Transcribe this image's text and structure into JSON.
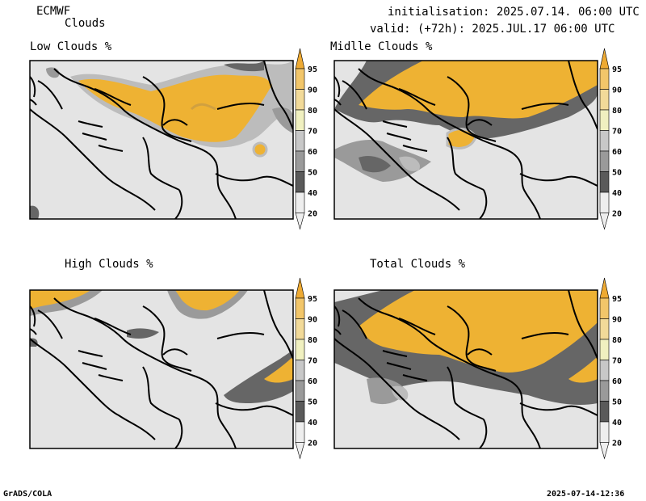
{
  "header": {
    "model": "ECMWF",
    "product": "Clouds",
    "init_line": "initialisation: 2025.07.14. 06:00 UTC",
    "valid_line": "valid: (+72h): 2025.JUL.17 06:00 UTC"
  },
  "panels": [
    {
      "title": "Low Clouds %"
    },
    {
      "title": "Midlle Clouds %"
    },
    {
      "title": "High Clouds %"
    },
    {
      "title": "Total Clouds %"
    }
  ],
  "colorbar": {
    "levels": [
      "95",
      "90",
      "80",
      "70",
      "60",
      "50",
      "40",
      "20"
    ],
    "colors": [
      "#eeaa33",
      "#f2c66a",
      "#f2da99",
      "#f0f0c0",
      "#c8c8c8",
      "#9a9a9a",
      "#5a5a5a",
      "#eeeeee"
    ]
  },
  "colors": {
    "background": "#e4e4e4",
    "cloud_high": "#eeb233",
    "cloud_mid": "#c6c6c6",
    "cloud_dark": "#666666"
  },
  "footer": {
    "left": "GrADS/COLA",
    "right": "2025-07-14-12:36"
  }
}
